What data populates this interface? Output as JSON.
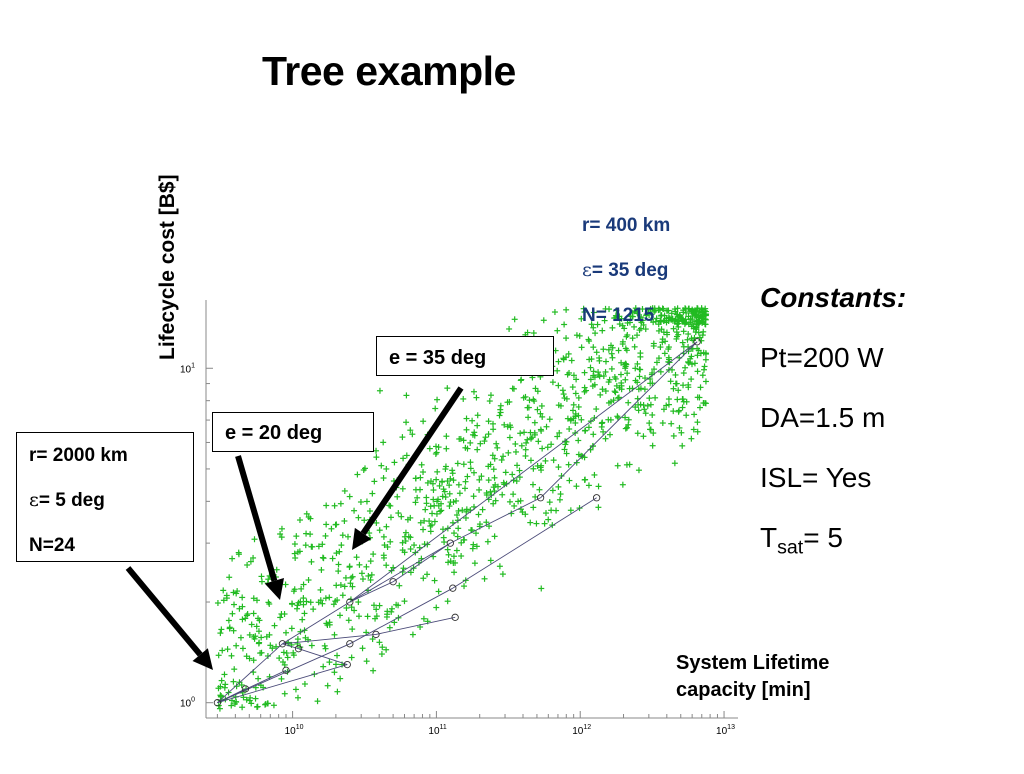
{
  "slide": {
    "title": "Tree example",
    "ylabel": "Lifecycle cost [B$]",
    "xlabel_line1": "System Lifetime",
    "xlabel_line2": "capacity  [min]"
  },
  "annotations": {
    "blue": {
      "r": "r= 400 km",
      "eps_symbol": "ε",
      "eps_rest": "= 35 deg",
      "n": "N= 1215"
    },
    "left_box": {
      "r": "r= 2000 km",
      "eps_symbol": "ε",
      "eps_rest": "= 5 deg",
      "n": "N=24"
    },
    "e20": "e = 20 deg",
    "e35": "e = 35 deg"
  },
  "constants": {
    "heading": "Constants:",
    "pt": "Pt=200 W",
    "da": "DA=1.5 m",
    "isl": "ISL= Yes",
    "tsat_main": "T",
    "tsat_sub": "sat",
    "tsat_value": "= 5"
  },
  "colors": {
    "points": "#22bb22",
    "tree": "#4a4a78",
    "blue_text": "#1a3a7a"
  },
  "chart_data": {
    "type": "scatter",
    "x_scale": "log",
    "y_scale": "log",
    "xlim": [
      2500000000.0,
      11000000000000.0
    ],
    "ylim": [
      0.9,
      16
    ],
    "x_ticks": [
      {
        "value": 10000000000.0,
        "base": "10",
        "exp": "10"
      },
      {
        "value": 100000000000.0,
        "base": "10",
        "exp": "11"
      },
      {
        "value": 1000000000000.0,
        "base": "10",
        "exp": "12"
      },
      {
        "value": 10000000000000.0,
        "base": "10",
        "exp": "13"
      }
    ],
    "y_ticks": [
      {
        "value": 1,
        "base": "10",
        "exp": "0"
      },
      {
        "value": 10,
        "base": "10",
        "exp": "1"
      }
    ],
    "tree_nodes": [
      [
        3000000000.0,
        1.0
      ],
      [
        4700000000.0,
        1.1
      ],
      [
        8500000000.0,
        1.5
      ],
      [
        9000000000.0,
        1.25
      ],
      [
        11000000000.0,
        1.45
      ],
      [
        24000000000.0,
        1.3
      ],
      [
        25000000000.0,
        2.0
      ],
      [
        25000000000.0,
        1.5
      ],
      [
        38000000000.0,
        1.6
      ],
      [
        50000000000.0,
        2.3
      ],
      [
        125000000000.0,
        3.0
      ],
      [
        130000000000.0,
        2.2
      ],
      [
        135000000000.0,
        1.8
      ],
      [
        530000000000.0,
        4.1
      ],
      [
        1300000000000.0,
        4.1
      ],
      [
        6500000000000.0,
        12.0
      ]
    ],
    "tree_edges": [
      [
        0,
        1
      ],
      [
        0,
        2
      ],
      [
        0,
        3
      ],
      [
        0,
        5
      ],
      [
        0,
        7
      ],
      [
        2,
        6
      ],
      [
        2,
        4
      ],
      [
        4,
        5
      ],
      [
        2,
        8
      ],
      [
        6,
        9
      ],
      [
        9,
        10
      ],
      [
        10,
        13
      ],
      [
        13,
        15
      ],
      [
        6,
        10
      ],
      [
        8,
        12
      ],
      [
        7,
        11
      ],
      [
        11,
        14
      ],
      [
        6,
        15
      ]
    ],
    "cloud": {
      "count": 1215,
      "description": "Points scatter along the trend from (3e9, 1.0) to (6.5e12, 12)"
    }
  }
}
